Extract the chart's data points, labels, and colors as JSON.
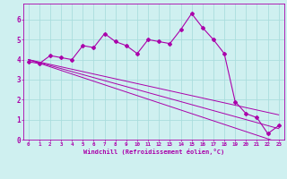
{
  "xlabel": "Windchill (Refroidissement éolien,°C)",
  "x_data": [
    0,
    1,
    2,
    3,
    4,
    5,
    6,
    7,
    8,
    9,
    10,
    11,
    12,
    13,
    14,
    15,
    16,
    17,
    18,
    19,
    20,
    21,
    22,
    23
  ],
  "y_data": [
    3.9,
    3.8,
    4.2,
    4.1,
    4.0,
    4.7,
    4.6,
    5.3,
    4.9,
    4.7,
    4.3,
    5.0,
    4.9,
    4.8,
    5.5,
    6.3,
    5.6,
    5.0,
    4.3,
    1.9,
    1.3,
    1.1,
    0.3,
    0.7
  ],
  "y_line1": [
    4.0,
    3.88,
    3.76,
    3.64,
    3.52,
    3.4,
    3.28,
    3.16,
    3.04,
    2.92,
    2.8,
    2.68,
    2.56,
    2.44,
    2.32,
    2.2,
    2.08,
    1.96,
    1.84,
    1.72,
    1.6,
    1.48,
    1.36,
    1.24
  ],
  "y_line2": [
    4.0,
    3.85,
    3.7,
    3.55,
    3.4,
    3.25,
    3.1,
    2.95,
    2.8,
    2.65,
    2.5,
    2.35,
    2.2,
    2.05,
    1.9,
    1.75,
    1.6,
    1.45,
    1.3,
    1.15,
    1.0,
    0.85,
    0.7,
    0.55
  ],
  "y_line3": [
    4.0,
    3.82,
    3.64,
    3.46,
    3.28,
    3.1,
    2.92,
    2.74,
    2.56,
    2.38,
    2.2,
    2.02,
    1.84,
    1.66,
    1.48,
    1.3,
    1.12,
    0.94,
    0.76,
    0.58,
    0.4,
    0.22,
    0.04,
    -0.14
  ],
  "color": "#aa00aa",
  "bg_color": "#cff0f0",
  "grid_color": "#aadddd",
  "ylim": [
    0,
    6.8
  ],
  "xlim": [
    -0.5,
    23.5
  ],
  "yticks": [
    0,
    1,
    2,
    3,
    4,
    5,
    6
  ],
  "xticks": [
    0,
    1,
    2,
    3,
    4,
    5,
    6,
    7,
    8,
    9,
    10,
    11,
    12,
    13,
    14,
    15,
    16,
    17,
    18,
    19,
    20,
    21,
    22,
    23
  ]
}
